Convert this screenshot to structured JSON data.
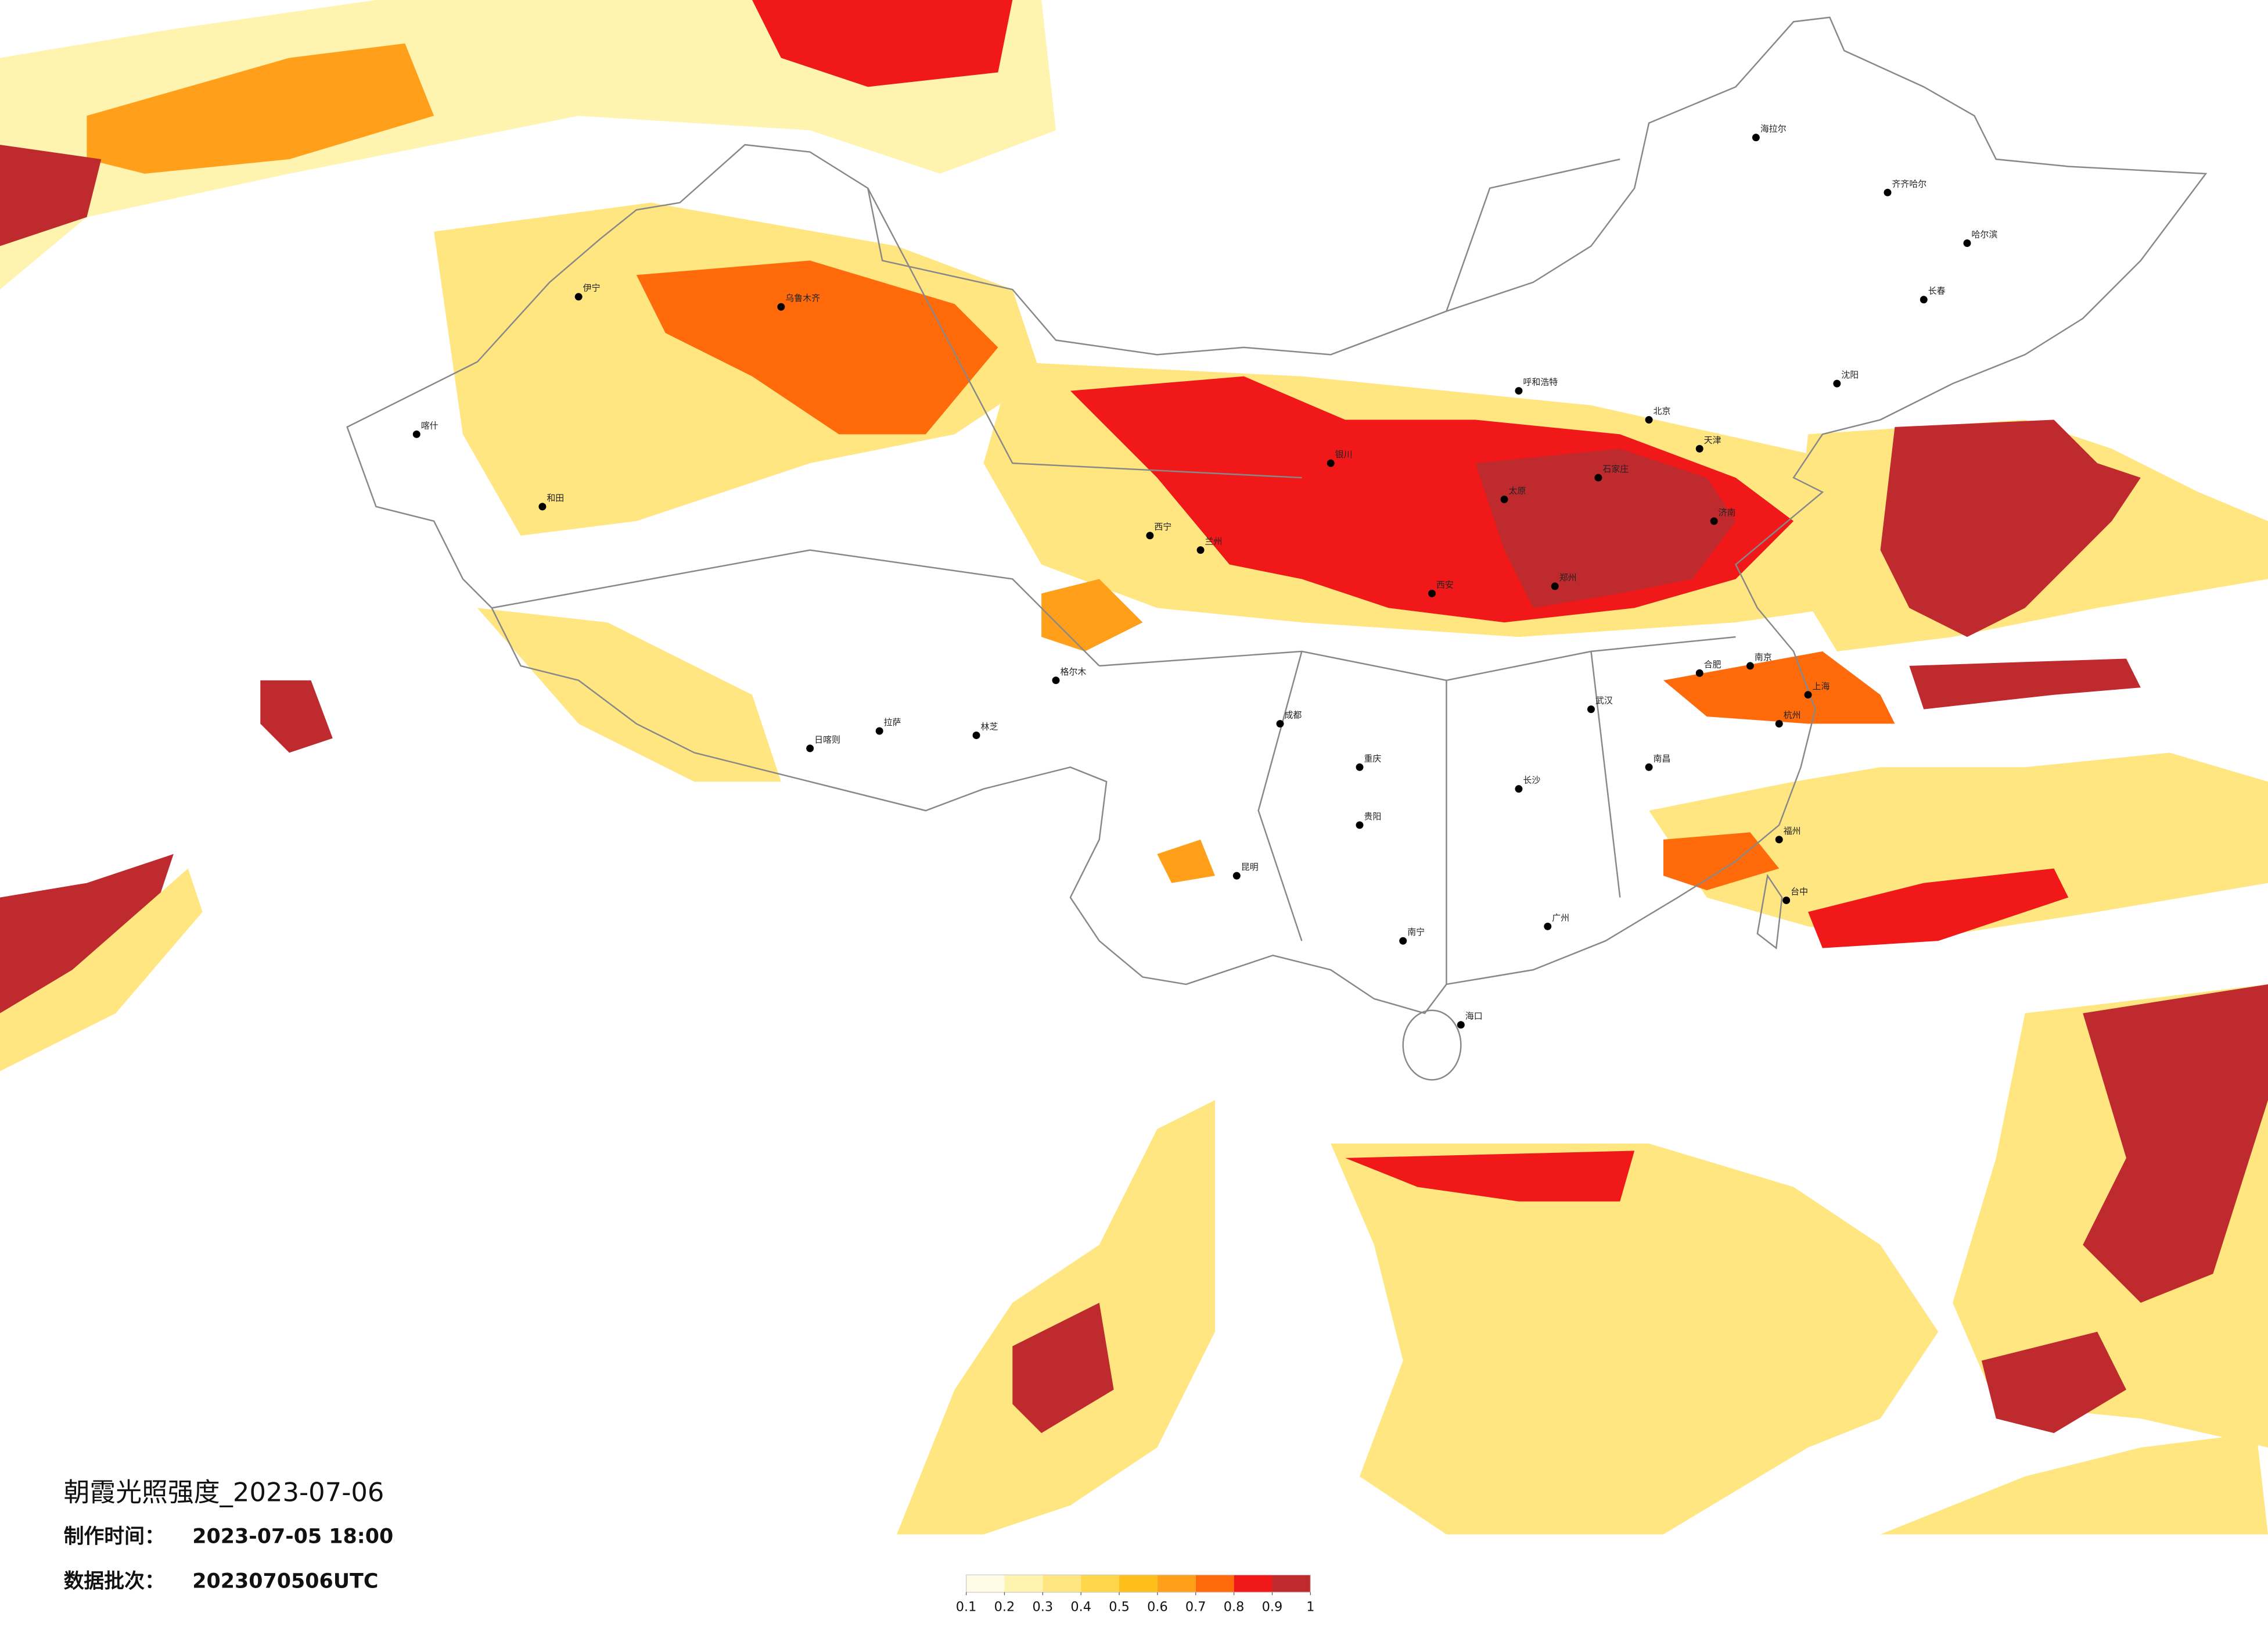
{
  "title": "朝霞光照强度_2023-07-06",
  "made_time": {
    "label": "制作时间：",
    "value": "2023-07-05 18:00"
  },
  "batch": {
    "label": "数据批次：",
    "value": "2023070506UTC"
  },
  "colorbar": {
    "ticks": [
      0.1,
      0.2,
      0.3,
      0.4,
      0.5,
      0.6,
      0.7,
      0.8,
      0.9,
      1
    ],
    "colors": [
      "#fffbe6",
      "#fff3b0",
      "#ffe680",
      "#ffd54a",
      "#ffbf1a",
      "#ff9f1a",
      "#ff6a0a",
      "#f01818",
      "#bf2a2e"
    ]
  },
  "cities": [
    "海拉尔",
    "齐齐哈尔",
    "哈尔滨",
    "长春",
    "沈阳",
    "呼和浩特",
    "北京",
    "天津",
    "石家庄",
    "太原",
    "济南",
    "郑州",
    "西安",
    "兰州",
    "西宁",
    "银川",
    "乌鲁木齐",
    "拉萨",
    "成都",
    "重庆",
    "贵阳",
    "昆明",
    "南宁",
    "广州",
    "长沙",
    "武汉",
    "南昌",
    "合肥",
    "南京",
    "上海",
    "杭州",
    "福州",
    "海口",
    "台中",
    "和田",
    "喀什",
    "伊宁",
    "格尔木",
    "日喀则",
    "林芝"
  ]
}
